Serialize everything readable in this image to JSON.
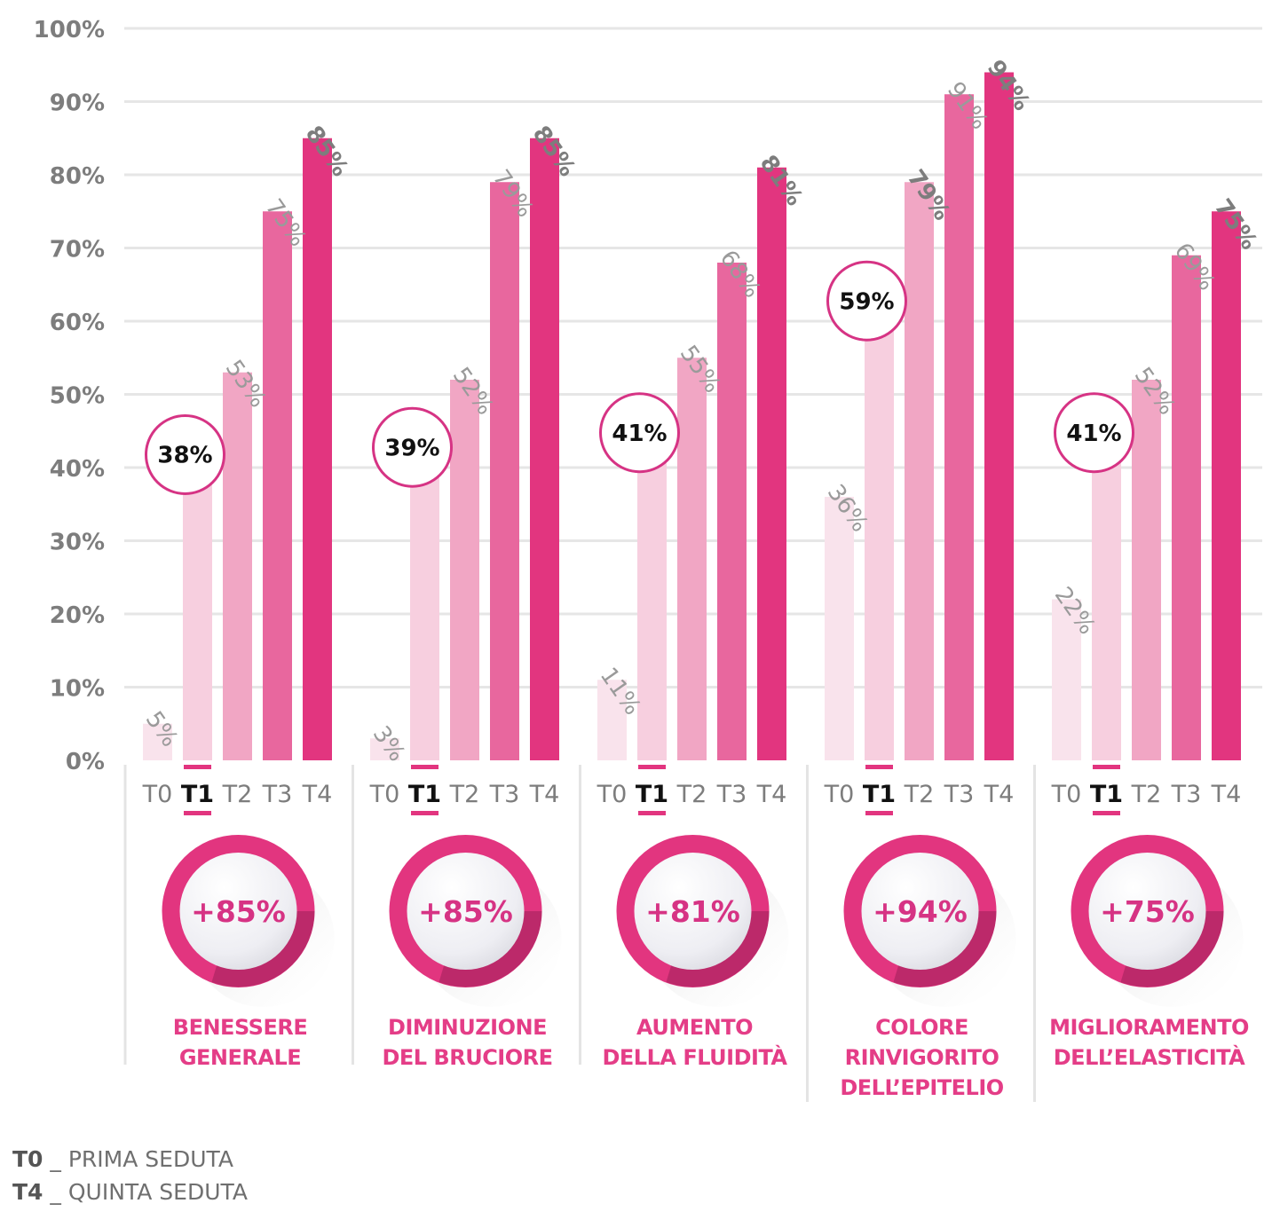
{
  "chart_data": {
    "type": "bar",
    "ylim": [
      0,
      100
    ],
    "y_ticks": [
      "0%",
      "10%",
      "20%",
      "30%",
      "40%",
      "50%",
      "60%",
      "70%",
      "80%",
      "90%",
      "100%"
    ],
    "grid": "horizontal",
    "times": [
      "T0",
      "T1",
      "T2",
      "T3",
      "T4"
    ],
    "highlighted_time": "T1",
    "colors": [
      "#f9e3ec",
      "#f7cfdf",
      "#f1a6c4",
      "#e8679e",
      "#e2357f"
    ],
    "groups": [
      {
        "name_lines": [
          "BENESSERE",
          "GENERALE"
        ],
        "values": [
          5,
          38,
          53,
          75,
          85
        ],
        "labels": [
          "5%",
          "38%",
          "53%",
          "75%",
          "85%"
        ],
        "improvement": "+85%"
      },
      {
        "name_lines": [
          "DIMINUZIONE",
          "DEL BRUCIORE"
        ],
        "values": [
          3,
          39,
          52,
          79,
          85
        ],
        "labels": [
          "3%",
          "39%",
          "52%",
          "79%",
          "85%"
        ],
        "improvement": "+85%"
      },
      {
        "name_lines": [
          "AUMENTO",
          "DELLA FLUIDITÀ"
        ],
        "values": [
          11,
          41,
          55,
          68,
          81
        ],
        "labels": [
          "11%",
          "41%",
          "55%",
          "68%",
          "81%"
        ],
        "improvement": "+81%"
      },
      {
        "name_lines": [
          "COLORE",
          "RINVIGORITO",
          "DELL’EPITELIO"
        ],
        "values": [
          36,
          59,
          79,
          91,
          94
        ],
        "labels": [
          "36%",
          "59%",
          "79%",
          "91%",
          "94%"
        ],
        "improvement": "+94%"
      },
      {
        "name_lines": [
          "MIGLIORAMENTO",
          "DELL’ELASTICITÀ"
        ],
        "values": [
          22,
          41,
          52,
          69,
          75
        ],
        "labels": [
          "22%",
          "41%",
          "52%",
          "69%",
          "75%"
        ],
        "improvement": "+75%"
      }
    ]
  },
  "legend": [
    {
      "key": "T0",
      "text": "_ PRIMA SEDUTA"
    },
    {
      "key": "T4",
      "text": "_ QUINTA SEDUTA"
    }
  ]
}
